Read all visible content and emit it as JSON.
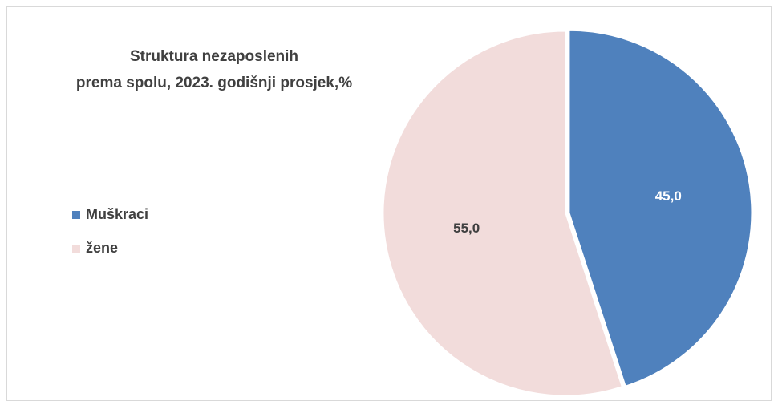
{
  "chart_data": {
    "type": "pie",
    "title": [
      "Struktura nezaposlenih",
      "prema spolu, 2023. godišnji prosjek,%"
    ],
    "categories": [
      "Muškraci",
      "žene"
    ],
    "values": [
      45.0,
      55.0
    ],
    "value_labels": [
      "45,0",
      "55,0"
    ],
    "colors": [
      "#4f81bd",
      "#f2dcdb"
    ],
    "label_colors": [
      "#ffffff",
      "#404040"
    ],
    "legend": "left"
  }
}
